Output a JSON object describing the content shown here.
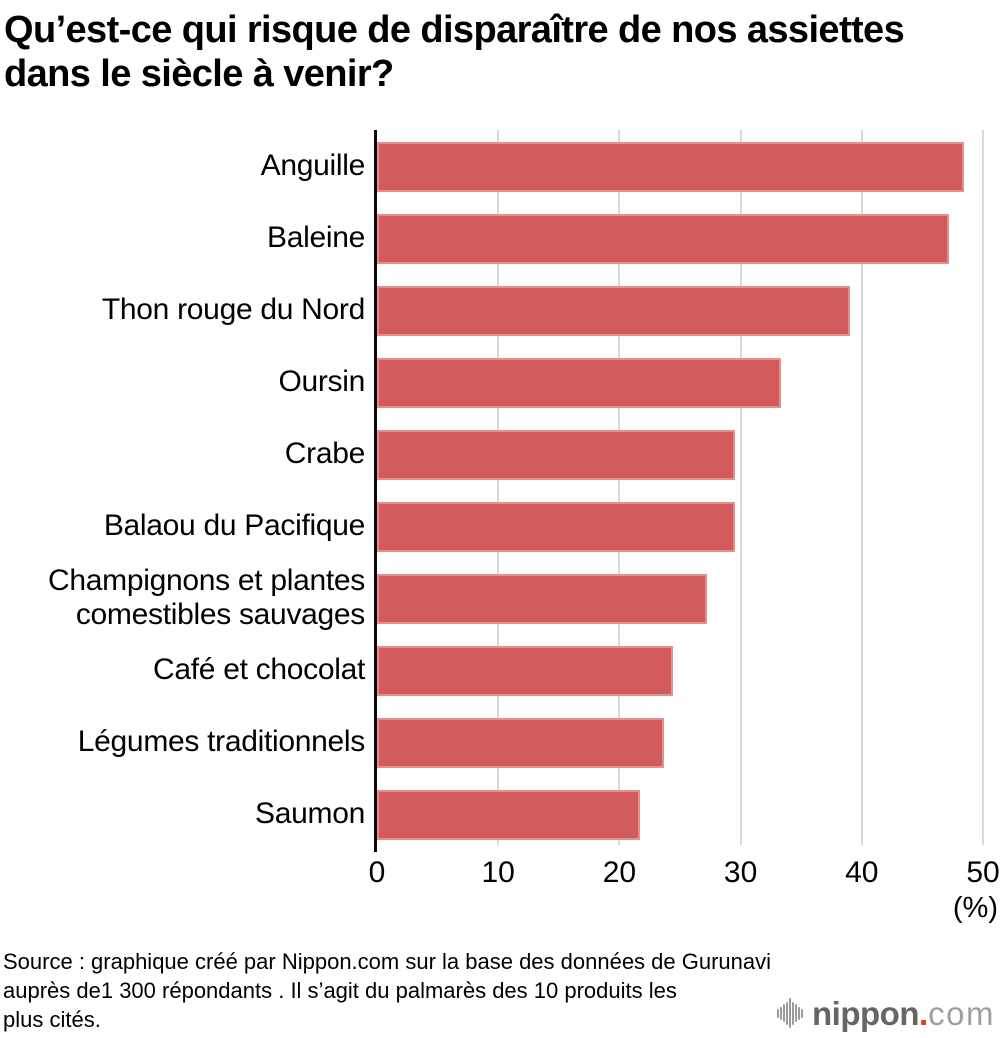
{
  "header": {
    "title_lines": [
      "Qu’est-ce qui risque de disparaître de nos assiettes",
      "dans le siècle à venir?"
    ]
  },
  "chart_data": {
    "type": "bar",
    "orientation": "horizontal",
    "title": "Qu’est-ce qui risque de disparaître de nos assiettes dans le siècle à venir?",
    "categories": [
      "Anguille",
      "Baleine",
      "Thon rouge du Nord",
      "Oursin",
      "Crabe",
      "Balaou du Pacifique",
      "Champignons et plantes\ncomestibles sauvages",
      "Café et chocolat",
      "Légumes traditionnels",
      "Saumon"
    ],
    "values": [
      48.4,
      47.2,
      39.0,
      33.3,
      29.5,
      29.5,
      27.2,
      24.4,
      23.7,
      21.7
    ],
    "xlabel": "(%)",
    "ylabel": "",
    "xlim": [
      0,
      50
    ],
    "xticks": [
      0,
      10,
      20,
      30,
      40,
      50
    ],
    "grid": true,
    "bar_color": "#d45b5b",
    "gridline_color": "#d9d9d9",
    "axis_color": "#0a0a0a"
  },
  "source": {
    "lines": [
      "Source : graphique créé par Nippon.com sur la base des données de Gurunavi",
      "auprès de1 300 répondants . Il s’agit du palmarès des 10 produits les",
      "plus cités."
    ]
  },
  "logo": {
    "icon": "soundwave-icon",
    "wordmark": "nippon",
    "dot": ".",
    "tld": "com",
    "wordmark_color": "#666666",
    "dot_color": "#e8380d",
    "tld_color": "#a0a0a0"
  }
}
